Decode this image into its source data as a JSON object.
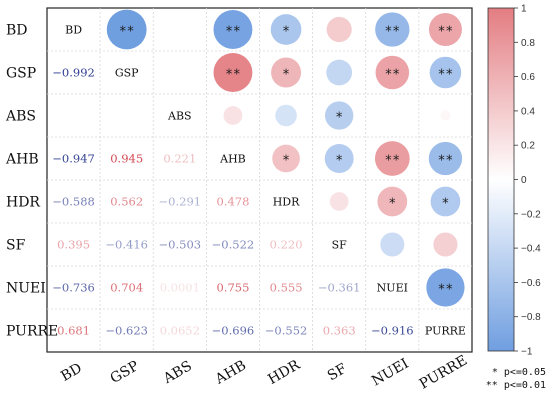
{
  "chart_data": {
    "type": "heatmap",
    "variables": [
      "BD",
      "GSP",
      "ABS",
      "AHB",
      "HDR",
      "SF",
      "NUEI",
      "PURRE"
    ],
    "lower_triangle": [
      {
        "row": "GSP",
        "col": "BD",
        "value": "−0.992"
      },
      {
        "row": "AHB",
        "col": "BD",
        "value": "−0.947"
      },
      {
        "row": "AHB",
        "col": "GSP",
        "value": "0.945"
      },
      {
        "row": "AHB",
        "col": "ABS",
        "value": "0.221"
      },
      {
        "row": "HDR",
        "col": "BD",
        "value": "−0.588"
      },
      {
        "row": "HDR",
        "col": "GSP",
        "value": "0.562"
      },
      {
        "row": "HDR",
        "col": "ABS",
        "value": "−0.291"
      },
      {
        "row": "HDR",
        "col": "AHB",
        "value": "0.478"
      },
      {
        "row": "SF",
        "col": "BD",
        "value": "0.395"
      },
      {
        "row": "SF",
        "col": "GSP",
        "value": "−0.416"
      },
      {
        "row": "SF",
        "col": "ABS",
        "value": "−0.503"
      },
      {
        "row": "SF",
        "col": "AHB",
        "value": "−0.522"
      },
      {
        "row": "SF",
        "col": "HDR",
        "value": "0.220"
      },
      {
        "row": "NUEI",
        "col": "BD",
        "value": "−0.736"
      },
      {
        "row": "NUEI",
        "col": "GSP",
        "value": "0.704"
      },
      {
        "row": "NUEI",
        "col": "ABS",
        "value": "0.0001"
      },
      {
        "row": "NUEI",
        "col": "AHB",
        "value": "0.755"
      },
      {
        "row": "NUEI",
        "col": "HDR",
        "value": "0.555"
      },
      {
        "row": "NUEI",
        "col": "SF",
        "value": "−0.361"
      },
      {
        "row": "PURRE",
        "col": "BD",
        "value": "0.681"
      },
      {
        "row": "PURRE",
        "col": "GSP",
        "value": "−0.623"
      },
      {
        "row": "PURRE",
        "col": "ABS",
        "value": "0.0652"
      },
      {
        "row": "PURRE",
        "col": "AHB",
        "value": "−0.696"
      },
      {
        "row": "PURRE",
        "col": "HDR",
        "value": "−0.552"
      },
      {
        "row": "PURRE",
        "col": "SF",
        "value": "0.363"
      },
      {
        "row": "PURRE",
        "col": "NUEI",
        "value": "−0.916"
      }
    ],
    "upper_triangle": [
      {
        "row": "BD",
        "col": "GSP",
        "r": -0.992,
        "stars": "**"
      },
      {
        "row": "BD",
        "col": "AHB",
        "r": -0.947,
        "stars": "**"
      },
      {
        "row": "BD",
        "col": "HDR",
        "r": -0.588,
        "stars": "*"
      },
      {
        "row": "BD",
        "col": "SF",
        "r": 0.395,
        "stars": ""
      },
      {
        "row": "BD",
        "col": "NUEI",
        "r": -0.736,
        "stars": "**"
      },
      {
        "row": "BD",
        "col": "PURRE",
        "r": 0.681,
        "stars": "**"
      },
      {
        "row": "GSP",
        "col": "AHB",
        "r": 0.945,
        "stars": "**"
      },
      {
        "row": "GSP",
        "col": "HDR",
        "r": 0.562,
        "stars": "*"
      },
      {
        "row": "GSP",
        "col": "SF",
        "r": -0.416,
        "stars": ""
      },
      {
        "row": "GSP",
        "col": "NUEI",
        "r": 0.704,
        "stars": "**"
      },
      {
        "row": "GSP",
        "col": "PURRE",
        "r": -0.623,
        "stars": "**"
      },
      {
        "row": "ABS",
        "col": "AHB",
        "r": 0.221,
        "stars": ""
      },
      {
        "row": "ABS",
        "col": "HDR",
        "r": -0.291,
        "stars": ""
      },
      {
        "row": "ABS",
        "col": "SF",
        "r": -0.503,
        "stars": "*"
      },
      {
        "row": "ABS",
        "col": "NUEI",
        "r": 0.0001,
        "stars": ""
      },
      {
        "row": "ABS",
        "col": "PURRE",
        "r": 0.0652,
        "stars": ""
      },
      {
        "row": "AHB",
        "col": "HDR",
        "r": 0.478,
        "stars": "*"
      },
      {
        "row": "AHB",
        "col": "SF",
        "r": -0.522,
        "stars": "*"
      },
      {
        "row": "AHB",
        "col": "NUEI",
        "r": 0.755,
        "stars": "**"
      },
      {
        "row": "AHB",
        "col": "PURRE",
        "r": -0.696,
        "stars": "**"
      },
      {
        "row": "HDR",
        "col": "SF",
        "r": 0.22,
        "stars": ""
      },
      {
        "row": "HDR",
        "col": "NUEI",
        "r": 0.555,
        "stars": "*"
      },
      {
        "row": "HDR",
        "col": "PURRE",
        "r": -0.552,
        "stars": "*"
      },
      {
        "row": "SF",
        "col": "NUEI",
        "r": -0.361,
        "stars": ""
      },
      {
        "row": "SF",
        "col": "PURRE",
        "r": 0.363,
        "stars": ""
      },
      {
        "row": "NUEI",
        "col": "PURRE",
        "r": -0.916,
        "stars": "**"
      }
    ],
    "colorbar": {
      "range": [
        -1,
        1
      ],
      "ticks": [
        "1",
        "0.8",
        "0.6",
        "0.4",
        "0.2",
        "0",
        "−0.2",
        "−0.4",
        "−0.6",
        "−0.8",
        "−1"
      ],
      "placement": "right"
    },
    "significance_note": [
      "* p<=0.05",
      "** p<=0.01"
    ],
    "colors": {
      "positive": "#e37d82",
      "negative": "#6f9ee0",
      "neutral": "#ffffff",
      "positive_text": "#d0414a",
      "negative_text": "#2d3c8f"
    },
    "grid": true
  }
}
